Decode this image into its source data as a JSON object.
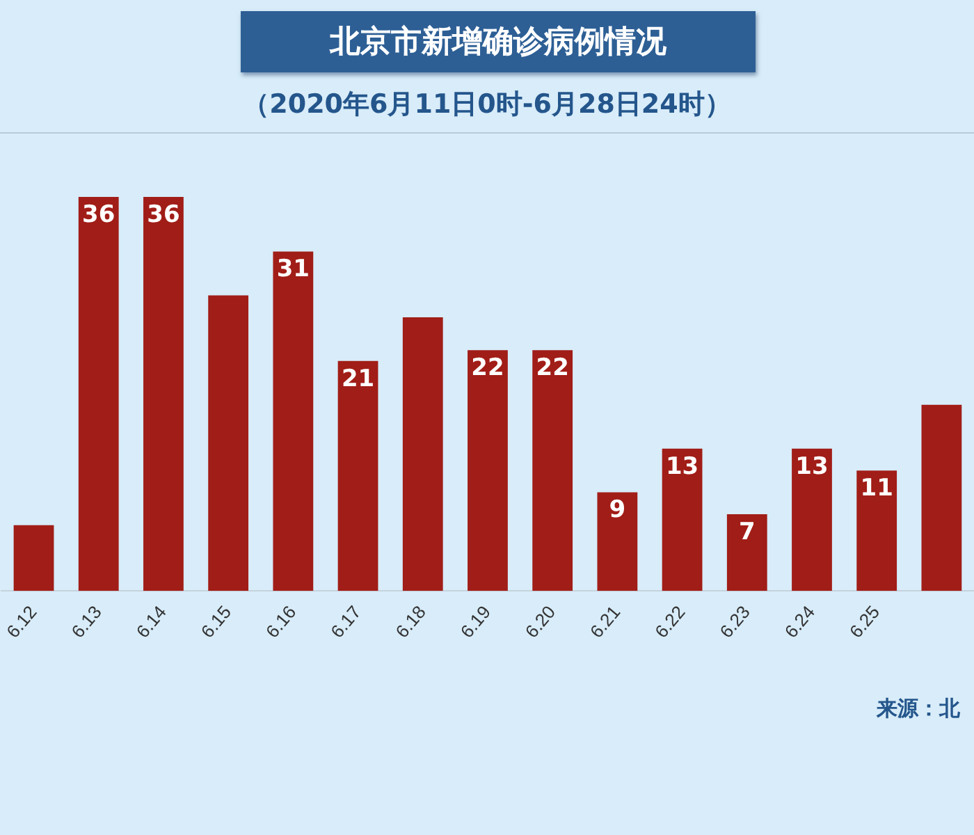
{
  "chart_data": {
    "type": "bar",
    "title": "北京市新增确诊病例情况",
    "subtitle": "（2020年6月11日0时-6月28日24时）",
    "categories": [
      "6.12",
      "6.13",
      "6.14",
      "6.15",
      "6.16",
      "6.17",
      "6.18",
      "6.19",
      "6.20",
      "6.21",
      "6.22",
      "6.23",
      "6.24",
      "6.25",
      null
    ],
    "values": [
      6,
      36,
      36,
      27,
      31,
      21,
      25,
      22,
      22,
      9,
      13,
      7,
      13,
      11,
      17
    ],
    "value_labels": [
      null,
      "36",
      "36",
      null,
      "31",
      "21",
      null,
      "22",
      "22",
      "9",
      "13",
      "7",
      "13",
      "11",
      null
    ],
    "color": "#a11d17",
    "annotations": [
      "来源：北"
    ],
    "grid": false,
    "legend": false
  }
}
